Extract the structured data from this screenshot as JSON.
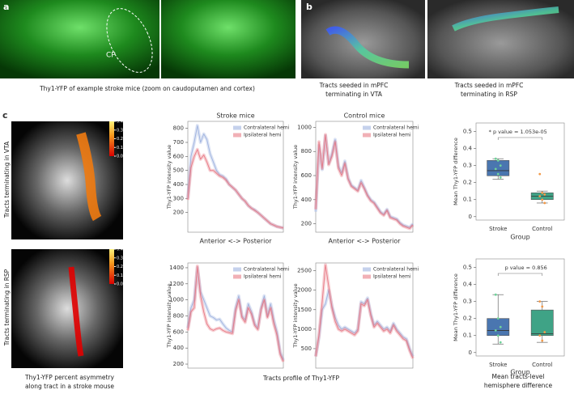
{
  "panels": {
    "a": "a",
    "b": "b",
    "c": "c"
  },
  "panel_a": {
    "cp_label": "CP",
    "caption": "Thy1-YFP of example stroke mice (zoom on caudoputamen and cortex)"
  },
  "panel_b": {
    "captions": [
      [
        "Tracts seeded in mPFC",
        "terminating in VTA"
      ],
      [
        "Tracts seeded in mPFC",
        "terminating in RSP"
      ]
    ]
  },
  "panel_c": {
    "row_labels": [
      "Tracts terminating in VTA",
      "Tracts terminating in RSP"
    ],
    "colorbar": {
      "ticks": [
        {
          "value": 0.4,
          "label": "0.400"
        },
        {
          "value": 0.3,
          "label": "0.300"
        },
        {
          "value": 0.2,
          "label": "0.200"
        },
        {
          "value": 0.1,
          "label": "0.100"
        },
        {
          "value": 0,
          "label": "0.00"
        }
      ],
      "lim": [
        0,
        0.4
      ]
    },
    "image_caption": [
      "Thy1-YFP percent asymmetry",
      "along tract in a stroke mouse"
    ],
    "profile_caption": "Tracts profile of Thy1-YFP",
    "box_caption": [
      "Mean tracts-level",
      "hemisphere difference"
    ]
  },
  "chart_data": [
    {
      "type": "line",
      "title": "Stroke mice",
      "xlabel": "Anterior <-> Posterior",
      "ylabel": "Thy1-YFP intensity value",
      "ylim": [
        60,
        850
      ],
      "yticks": [
        200,
        300,
        400,
        500,
        600,
        700,
        800
      ],
      "series": [
        {
          "name": "Contralateral hemi",
          "color": "#9fb3df",
          "values": [
            300,
            600,
            700,
            820,
            700,
            760,
            720,
            620,
            560,
            500,
            470,
            460,
            440,
            400,
            380,
            360,
            330,
            300,
            280,
            250,
            230,
            220,
            200,
            180,
            160,
            140,
            120,
            110,
            100,
            95,
            90
          ]
        },
        {
          "name": "Ipsilateral hemi",
          "color": "#e87b86",
          "values": [
            290,
            520,
            600,
            650,
            580,
            610,
            560,
            500,
            500,
            480,
            460,
            450,
            430,
            400,
            380,
            360,
            330,
            300,
            280,
            250,
            230,
            215,
            200,
            180,
            160,
            140,
            120,
            110,
            100,
            95,
            90
          ]
        }
      ]
    },
    {
      "type": "line",
      "title": "Control mice",
      "xlabel": "Anterior <-> Posterior",
      "ylabel": "Thy1-YFP intensity value",
      "ylim": [
        130,
        1050
      ],
      "yticks": [
        200,
        400,
        600,
        800,
        1000
      ],
      "series": [
        {
          "name": "Contralateral hemi",
          "color": "#9fb3df",
          "values": [
            300,
            850,
            650,
            930,
            700,
            780,
            900,
            680,
            620,
            720,
            580,
            520,
            500,
            480,
            560,
            500,
            440,
            400,
            380,
            340,
            300,
            280,
            320,
            260,
            250,
            240,
            210,
            190,
            180,
            170,
            200
          ]
        },
        {
          "name": "Ipsilateral hemi",
          "color": "#e87b86",
          "values": [
            320,
            880,
            660,
            940,
            690,
            760,
            880,
            660,
            600,
            700,
            570,
            510,
            490,
            470,
            540,
            490,
            430,
            390,
            370,
            330,
            290,
            270,
            310,
            250,
            240,
            230,
            200,
            180,
            170,
            160,
            190
          ]
        }
      ]
    },
    {
      "type": "line",
      "ylabel": "Thy1-YFP intensity value",
      "ylim": [
        150,
        1460
      ],
      "yticks": [
        200,
        400,
        600,
        800,
        1000,
        1200,
        1400
      ],
      "series": [
        {
          "name": "Contralateral hemi",
          "color": "#9fb3df",
          "values": [
            650,
            900,
            1000,
            1400,
            1100,
            1000,
            900,
            800,
            780,
            750,
            760,
            700,
            650,
            620,
            600,
            900,
            1050,
            800,
            750,
            950,
            850,
            700,
            650,
            900,
            1050,
            800,
            950,
            750,
            600,
            350,
            250
          ]
        },
        {
          "name": "Ipsilateral hemi",
          "color": "#e87b86",
          "values": [
            620,
            850,
            900,
            1420,
            1050,
            850,
            700,
            640,
            620,
            640,
            650,
            620,
            600,
            590,
            580,
            860,
            1000,
            780,
            720,
            900,
            820,
            680,
            630,
            880,
            1000,
            780,
            900,
            700,
            560,
            320,
            230
          ]
        }
      ]
    },
    {
      "type": "line",
      "ylabel": "Thy1-YFP intensity value",
      "ylim": [
        0,
        2700
      ],
      "yticks": [
        500,
        1000,
        1500,
        2000,
        2500
      ],
      "series": [
        {
          "name": "Contralateral hemi",
          "color": "#9fb3df",
          "values": [
            300,
            800,
            1500,
            1650,
            2000,
            1600,
            1300,
            1100,
            1000,
            1050,
            1000,
            950,
            900,
            1000,
            1700,
            1650,
            1800,
            1400,
            1100,
            1200,
            1100,
            1000,
            1050,
            950,
            1150,
            1000,
            900,
            800,
            750,
            500,
            300
          ]
        },
        {
          "name": "Ipsilateral hemi",
          "color": "#e87b86",
          "values": [
            300,
            850,
            1700,
            2650,
            2100,
            1550,
            1200,
            1000,
            950,
            1000,
            950,
            900,
            850,
            950,
            1650,
            1600,
            1750,
            1350,
            1050,
            1150,
            1050,
            950,
            1000,
            900,
            1100,
            950,
            850,
            750,
            700,
            450,
            250
          ]
        }
      ]
    },
    {
      "type": "box",
      "xlabel": "Group",
      "ylabel": "Mean Thy1-YFP difference",
      "annotation": "* p value = 1.053e-05",
      "ylim": [
        -0.02,
        0.55
      ],
      "yticks": [
        0.0,
        0.1,
        0.2,
        0.3,
        0.4,
        0.5
      ],
      "categories": [
        "Stroke",
        "Control"
      ],
      "boxes": [
        {
          "color": "#4a76b0",
          "whisker_low": 0.22,
          "q1": 0.24,
          "median": 0.27,
          "q3": 0.33,
          "whisker_high": 0.34,
          "points": [
            0.34,
            0.33,
            0.3,
            0.28,
            0.25,
            0.23
          ]
        },
        {
          "color": "#3fa386",
          "whisker_low": 0.08,
          "q1": 0.1,
          "median": 0.12,
          "q3": 0.14,
          "whisker_high": 0.15,
          "points": [
            0.25,
            0.14,
            0.13,
            0.12,
            0.1,
            0.08
          ]
        }
      ]
    },
    {
      "type": "box",
      "xlabel": "Group",
      "ylabel": "Mean Thy1-YFP difference",
      "annotation": "p value = 0.856",
      "ylim": [
        -0.02,
        0.55
      ],
      "yticks": [
        0.0,
        0.1,
        0.2,
        0.3,
        0.4,
        0.5
      ],
      "categories": [
        "Stroke",
        "Control"
      ],
      "boxes": [
        {
          "color": "#4a76b0",
          "whisker_low": 0.05,
          "q1": 0.1,
          "median": 0.13,
          "q3": 0.2,
          "whisker_high": 0.34,
          "points": [
            0.34,
            0.2,
            0.15,
            0.13,
            0.1,
            0.06
          ]
        },
        {
          "color": "#3fa386",
          "whisker_low": 0.06,
          "q1": 0.1,
          "median": 0.11,
          "q3": 0.25,
          "whisker_high": 0.3,
          "points": [
            0.3,
            0.27,
            0.12,
            0.1,
            0.07
          ]
        }
      ]
    }
  ]
}
